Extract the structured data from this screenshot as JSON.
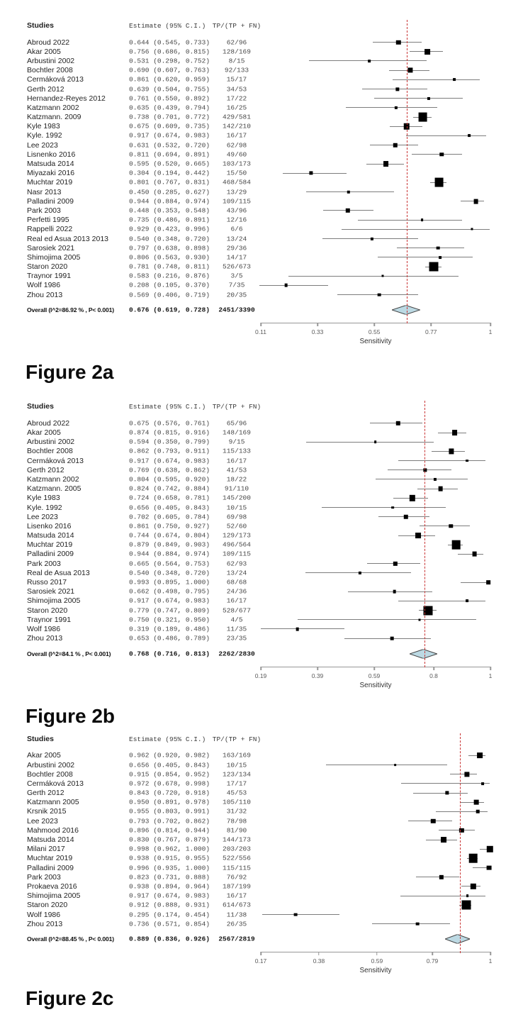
{
  "axis_label": "Sensitivity",
  "table_headers": {
    "studies": "Studies",
    "estimate": "Estimate (95% C.I.)",
    "counts": "TP/(TP + FN)"
  },
  "colors": {
    "square": "#000000",
    "ci_line": "#7d7d7d",
    "reference_line": "#c93434",
    "diamond_fill": "#bcd9e3",
    "diamond_stroke": "#444444",
    "axis": "#979797"
  },
  "chart_data": [
    {
      "type": "scatter",
      "subtype": "forest-plot",
      "caption": "Figure 2a",
      "xlabel": "Sensitivity",
      "xlim": [
        0.11,
        1
      ],
      "xticks": [
        "0.11",
        "0.33",
        "0.55",
        "0.77",
        "1"
      ],
      "studies": [
        {
          "name": "Abroud 2022",
          "est": 0.644,
          "lo": 0.545,
          "hi": 0.733,
          "counts": "62/96"
        },
        {
          "name": "Akar 2005",
          "est": 0.756,
          "lo": 0.686,
          "hi": 0.815,
          "counts": "128/169"
        },
        {
          "name": "Arbustini 2002",
          "est": 0.531,
          "lo": 0.298,
          "hi": 0.752,
          "counts": "8/15"
        },
        {
          "name": "Bochtler 2008",
          "est": 0.69,
          "lo": 0.607,
          "hi": 0.763,
          "counts": "92/133"
        },
        {
          "name": "Cermáková 2013",
          "est": 0.861,
          "lo": 0.62,
          "hi": 0.959,
          "counts": "15/17"
        },
        {
          "name": "Gerth 2012",
          "est": 0.639,
          "lo": 0.504,
          "hi": 0.755,
          "counts": "34/53"
        },
        {
          "name": "Hernandez-Reyes 2012",
          "est": 0.761,
          "lo": 0.55,
          "hi": 0.892,
          "counts": "17/22"
        },
        {
          "name": "Katzmann 2002",
          "est": 0.635,
          "lo": 0.439,
          "hi": 0.794,
          "counts": "16/25"
        },
        {
          "name": "Katzmann. 2009",
          "est": 0.738,
          "lo": 0.701,
          "hi": 0.772,
          "counts": "429/581"
        },
        {
          "name": "Kyle 1983",
          "est": 0.675,
          "lo": 0.609,
          "hi": 0.735,
          "counts": "142/210"
        },
        {
          "name": "Kyle. 1992",
          "est": 0.917,
          "lo": 0.674,
          "hi": 0.983,
          "counts": "16/17"
        },
        {
          "name": "Lee 2023",
          "est": 0.631,
          "lo": 0.532,
          "hi": 0.72,
          "counts": "62/98"
        },
        {
          "name": "Lisnenko 2016",
          "est": 0.811,
          "lo": 0.694,
          "hi": 0.891,
          "counts": "49/60"
        },
        {
          "name": "Matsuda 2014",
          "est": 0.595,
          "lo": 0.52,
          "hi": 0.665,
          "counts": "103/173"
        },
        {
          "name": "Miyazaki 2016",
          "est": 0.304,
          "lo": 0.194,
          "hi": 0.442,
          "counts": "15/50"
        },
        {
          "name": "Muchtar 2019",
          "est": 0.801,
          "lo": 0.767,
          "hi": 0.831,
          "counts": "468/584"
        },
        {
          "name": "Nasr 2013",
          "est": 0.45,
          "lo": 0.285,
          "hi": 0.627,
          "counts": "13/29"
        },
        {
          "name": "Palladini 2009",
          "est": 0.944,
          "lo": 0.884,
          "hi": 0.974,
          "counts": "109/115"
        },
        {
          "name": "Park 2003",
          "est": 0.448,
          "lo": 0.353,
          "hi": 0.548,
          "counts": "43/96"
        },
        {
          "name": "Perfetti 1995",
          "est": 0.735,
          "lo": 0.486,
          "hi": 0.891,
          "counts": "12/16"
        },
        {
          "name": "Rappelli 2022",
          "est": 0.929,
          "lo": 0.423,
          "hi": 0.996,
          "counts": "6/6"
        },
        {
          "name": "Real ed Asua 2013 2013",
          "est": 0.54,
          "lo": 0.348,
          "hi": 0.72,
          "counts": "13/24"
        },
        {
          "name": "Sarosiek 2021",
          "est": 0.797,
          "lo": 0.638,
          "hi": 0.898,
          "counts": "29/36"
        },
        {
          "name": "Shimojima 2005",
          "est": 0.806,
          "lo": 0.563,
          "hi": 0.93,
          "counts": "14/17"
        },
        {
          "name": "Staron 2020",
          "est": 0.781,
          "lo": 0.748,
          "hi": 0.811,
          "counts": "526/673"
        },
        {
          "name": "Traynor 1991",
          "est": 0.583,
          "lo": 0.216,
          "hi": 0.876,
          "counts": "3/5"
        },
        {
          "name": "Wolf 1986",
          "est": 0.208,
          "lo": 0.105,
          "hi": 0.37,
          "counts": "7/35"
        },
        {
          "name": "Zhou 2013",
          "est": 0.569,
          "lo": 0.406,
          "hi": 0.719,
          "counts": "20/35"
        }
      ],
      "overall": {
        "label": "Overall (I^2=86.92 % , P< 0.001)",
        "est": 0.676,
        "lo": 0.619,
        "hi": 0.728,
        "counts": "2451/3390"
      }
    },
    {
      "type": "scatter",
      "subtype": "forest-plot",
      "caption": "Figure 2b",
      "xlabel": "Sensitivity",
      "xlim": [
        0.19,
        1
      ],
      "xticks": [
        "0.19",
        "0.39",
        "0.59",
        "0.8",
        "1"
      ],
      "studies": [
        {
          "name": "Abroud 2022",
          "est": 0.675,
          "lo": 0.576,
          "hi": 0.761,
          "counts": "65/96"
        },
        {
          "name": "Akar 2005",
          "est": 0.874,
          "lo": 0.815,
          "hi": 0.916,
          "counts": "148/169"
        },
        {
          "name": "Arbustini 2002",
          "est": 0.594,
          "lo": 0.35,
          "hi": 0.799,
          "counts": "9/15"
        },
        {
          "name": "Bochtler 2008",
          "est": 0.862,
          "lo": 0.793,
          "hi": 0.911,
          "counts": "115/133"
        },
        {
          "name": "Cermáková 2013",
          "est": 0.917,
          "lo": 0.674,
          "hi": 0.983,
          "counts": "16/17"
        },
        {
          "name": "Gerth 2012",
          "est": 0.769,
          "lo": 0.638,
          "hi": 0.862,
          "counts": "41/53"
        },
        {
          "name": "Katzmann 2002",
          "est": 0.804,
          "lo": 0.595,
          "hi": 0.92,
          "counts": "18/22"
        },
        {
          "name": "Katzmann. 2005",
          "est": 0.824,
          "lo": 0.742,
          "hi": 0.884,
          "counts": "91/110"
        },
        {
          "name": "Kyle 1983",
          "est": 0.724,
          "lo": 0.658,
          "hi": 0.781,
          "counts": "145/200"
        },
        {
          "name": "Kyle. 1992",
          "est": 0.656,
          "lo": 0.405,
          "hi": 0.843,
          "counts": "10/15"
        },
        {
          "name": "Lee 2023",
          "est": 0.702,
          "lo": 0.605,
          "hi": 0.784,
          "counts": "69/98"
        },
        {
          "name": "Lisenko 2016",
          "est": 0.861,
          "lo": 0.75,
          "hi": 0.927,
          "counts": "52/60"
        },
        {
          "name": "Matsuda 2014",
          "est": 0.744,
          "lo": 0.674,
          "hi": 0.804,
          "counts": "129/173"
        },
        {
          "name": "Muchtar 2019",
          "est": 0.879,
          "lo": 0.849,
          "hi": 0.903,
          "counts": "496/564"
        },
        {
          "name": "Palladini 2009",
          "est": 0.944,
          "lo": 0.884,
          "hi": 0.974,
          "counts": "109/115"
        },
        {
          "name": "Park 2003",
          "est": 0.665,
          "lo": 0.564,
          "hi": 0.753,
          "counts": "62/93"
        },
        {
          "name": "Real de Asua 2013",
          "est": 0.54,
          "lo": 0.348,
          "hi": 0.72,
          "counts": "13/24"
        },
        {
          "name": "Russo 2017",
          "est": 0.993,
          "lo": 0.895,
          "hi": 1.0,
          "counts": "68/68"
        },
        {
          "name": "Sarosiek 2021",
          "est": 0.662,
          "lo": 0.498,
          "hi": 0.795,
          "counts": "24/36"
        },
        {
          "name": "Shimojima 2005",
          "est": 0.917,
          "lo": 0.674,
          "hi": 0.983,
          "counts": "16/17"
        },
        {
          "name": "Staron 2020",
          "est": 0.779,
          "lo": 0.747,
          "hi": 0.809,
          "counts": "528/677"
        },
        {
          "name": "Traynor 1991",
          "est": 0.75,
          "lo": 0.321,
          "hi": 0.95,
          "counts": "4/5"
        },
        {
          "name": "Wolf 1986",
          "est": 0.319,
          "lo": 0.189,
          "hi": 0.486,
          "counts": "11/35"
        },
        {
          "name": "Zhou 2013",
          "est": 0.653,
          "lo": 0.486,
          "hi": 0.789,
          "counts": "23/35"
        }
      ],
      "overall": {
        "label": "Overall (I^2=84.1 % , P< 0.001)",
        "est": 0.768,
        "lo": 0.716,
        "hi": 0.813,
        "counts": "2262/2830"
      }
    },
    {
      "type": "scatter",
      "subtype": "forest-plot",
      "caption": "Figure 2c",
      "xlabel": "Sensitivity",
      "xlim": [
        0.17,
        1
      ],
      "xticks": [
        "0.17",
        "0.38",
        "0.59",
        "0.79",
        "1"
      ],
      "studies": [
        {
          "name": "Akar 2005",
          "est": 0.962,
          "lo": 0.92,
          "hi": 0.982,
          "counts": "163/169"
        },
        {
          "name": "Arbustini 2002",
          "est": 0.656,
          "lo": 0.405,
          "hi": 0.843,
          "counts": "10/15"
        },
        {
          "name": "Bochtler 2008",
          "est": 0.915,
          "lo": 0.854,
          "hi": 0.952,
          "counts": "123/134"
        },
        {
          "name": "Cermáková 2013",
          "est": 0.972,
          "lo": 0.678,
          "hi": 0.998,
          "counts": "17/17"
        },
        {
          "name": "Gerth 2012",
          "est": 0.843,
          "lo": 0.72,
          "hi": 0.918,
          "counts": "45/53"
        },
        {
          "name": "Katzmann 2005",
          "est": 0.95,
          "lo": 0.891,
          "hi": 0.978,
          "counts": "105/110"
        },
        {
          "name": "Krsnik 2015",
          "est": 0.955,
          "lo": 0.803,
          "hi": 0.991,
          "counts": "31/32"
        },
        {
          "name": "Lee 2023",
          "est": 0.793,
          "lo": 0.702,
          "hi": 0.862,
          "counts": "78/98"
        },
        {
          "name": "Mahmood 2016",
          "est": 0.896,
          "lo": 0.814,
          "hi": 0.944,
          "counts": "81/90"
        },
        {
          "name": "Matsuda 2014",
          "est": 0.83,
          "lo": 0.767,
          "hi": 0.879,
          "counts": "144/173"
        },
        {
          "name": "Milani 2017",
          "est": 0.998,
          "lo": 0.962,
          "hi": 1.0,
          "counts": "203/203"
        },
        {
          "name": "Muchtar 2019",
          "est": 0.938,
          "lo": 0.915,
          "hi": 0.955,
          "counts": "522/556"
        },
        {
          "name": "Palladini 2009",
          "est": 0.996,
          "lo": 0.935,
          "hi": 1.0,
          "counts": "115/115"
        },
        {
          "name": "Park 2003",
          "est": 0.823,
          "lo": 0.731,
          "hi": 0.888,
          "counts": "76/92"
        },
        {
          "name": "Prokaeva 2016",
          "est": 0.938,
          "lo": 0.894,
          "hi": 0.964,
          "counts": "187/199"
        },
        {
          "name": "Shimojima 2005",
          "est": 0.917,
          "lo": 0.674,
          "hi": 0.983,
          "counts": "16/17"
        },
        {
          "name": "Staron 2020",
          "est": 0.912,
          "lo": 0.888,
          "hi": 0.931,
          "counts": "614/673"
        },
        {
          "name": "Wolf 1986",
          "est": 0.295,
          "lo": 0.174,
          "hi": 0.454,
          "counts": "11/38"
        },
        {
          "name": "Zhou 2013",
          "est": 0.736,
          "lo": 0.571,
          "hi": 0.854,
          "counts": "26/35"
        }
      ],
      "overall": {
        "label": "Overall (I^2=88.45 % , P< 0.001)",
        "est": 0.889,
        "lo": 0.836,
        "hi": 0.926,
        "counts": "2567/2819"
      }
    }
  ]
}
